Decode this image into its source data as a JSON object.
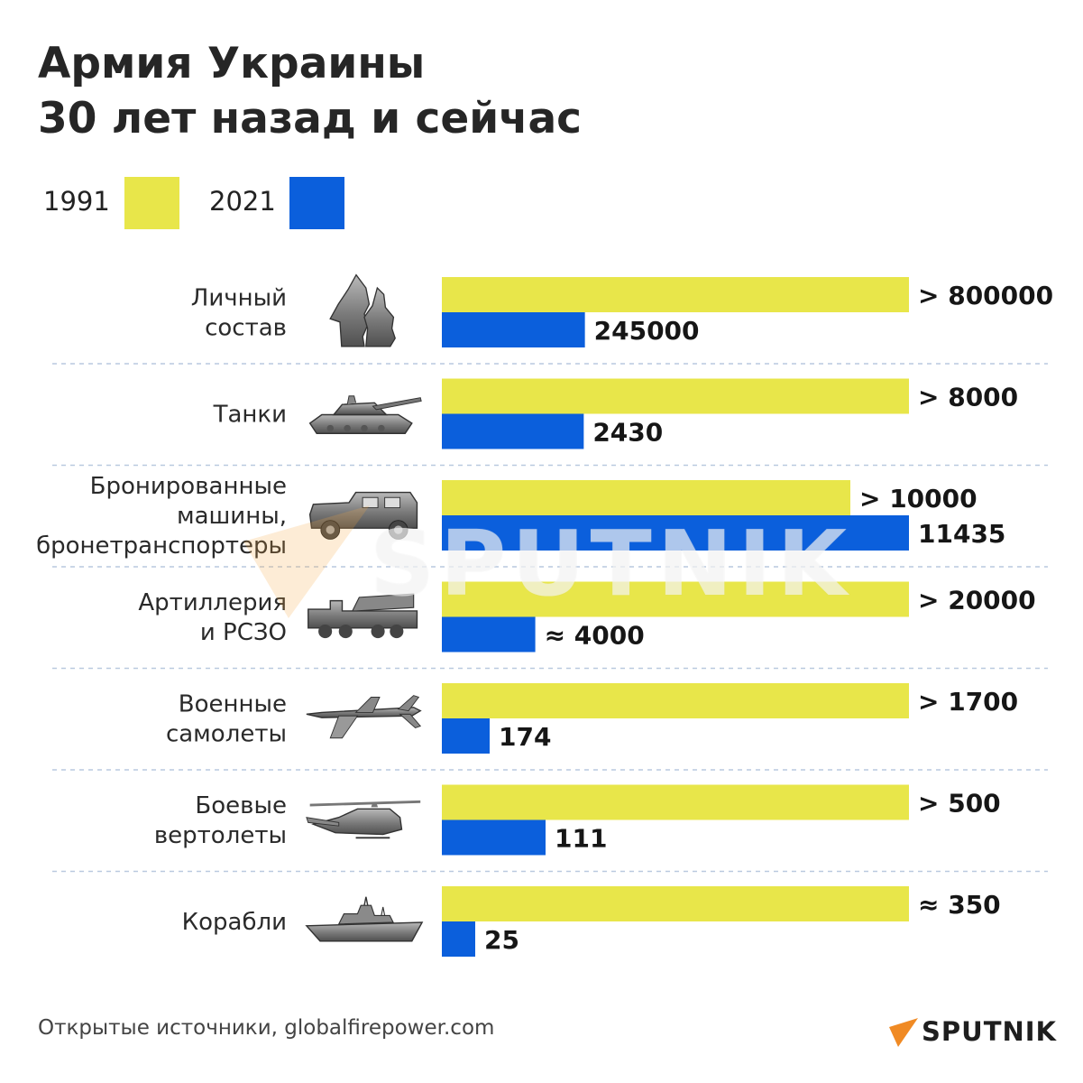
{
  "title": {
    "line1": "Армия Украины",
    "line2": "30 лет назад и сейчас"
  },
  "legend": [
    {
      "label": "1991",
      "color": "#e8e64a"
    },
    {
      "label": "2021",
      "color": "#0b5fdc"
    }
  ],
  "chart_data": {
    "type": "bar",
    "orientation": "horizontal",
    "categories": [
      {
        "label_lines": [
          "Личный",
          "состав"
        ],
        "icon": "soldiers-icon"
      },
      {
        "label_lines": [
          "Танки"
        ],
        "icon": "tank-icon"
      },
      {
        "label_lines": [
          "Бронированные",
          "машины,",
          "бронетранспортеры"
        ],
        "icon": "armored-vehicle-icon"
      },
      {
        "label_lines": [
          "Артиллерия",
          "и РСЗО"
        ],
        "icon": "artillery-icon"
      },
      {
        "label_lines": [
          "Военные",
          "самолеты"
        ],
        "icon": "airplane-icon"
      },
      {
        "label_lines": [
          "Боевые",
          "вертолеты"
        ],
        "icon": "helicopter-icon"
      },
      {
        "label_lines": [
          "Корабли"
        ],
        "icon": "ship-icon"
      }
    ],
    "series": [
      {
        "name": "1991",
        "color": "#e8e64a",
        "values": [
          800000,
          8000,
          10000,
          20000,
          1700,
          500,
          350
        ],
        "value_labels": [
          "> 800000",
          "> 8000",
          "> 10000",
          "> 20000",
          "> 1700",
          "> 500",
          "≈ 350"
        ]
      },
      {
        "name": "2021",
        "color": "#0b5fdc",
        "values": [
          245000,
          2430,
          11435,
          4000,
          174,
          111,
          25
        ],
        "value_labels": [
          "245000",
          "2430",
          "11435",
          "≈ 4000",
          "174",
          "111",
          "25"
        ]
      }
    ],
    "scale_note": "each category scaled independently; larger value per category fills full bar width",
    "grid": false,
    "legend_position": "top-left"
  },
  "footer": {
    "source": "Открытые источники, globalfirepower.com",
    "brand": "SPUTNIK",
    "watermark": "SPUTNIK"
  }
}
